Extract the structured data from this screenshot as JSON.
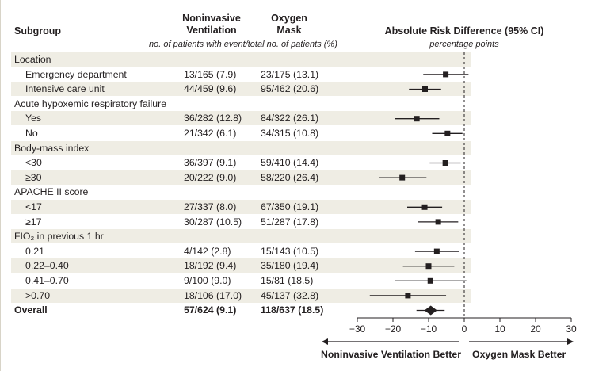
{
  "headers": {
    "subgroup": "Subgroup",
    "niv_line1": "Noninvasive",
    "niv_line2": "Ventilation",
    "mask_line1": "Oxygen",
    "mask_line2": "Mask",
    "counts_note": "no. of patients with event/total no. of patients (%)",
    "ard": "Absolute Risk Difference (95% CI)",
    "units": "percentage points"
  },
  "rows": [
    {
      "label": "Location",
      "kind": "header"
    },
    {
      "label": "Emergency department",
      "kind": "item",
      "niv": "13/165 (7.9)",
      "mask": "23/175 (13.1)"
    },
    {
      "label": "Intensive care unit",
      "kind": "item",
      "niv": "44/459 (9.6)",
      "mask": "95/462 (20.6)"
    },
    {
      "label": "Acute hypoxemic respiratory failure",
      "kind": "header"
    },
    {
      "label": "Yes",
      "kind": "item",
      "niv": "36/282 (12.8)",
      "mask": "84/322 (26.1)"
    },
    {
      "label": "No",
      "kind": "item",
      "niv": "21/342 (6.1)",
      "mask": "34/315 (10.8)"
    },
    {
      "label": "Body-mass index",
      "kind": "header"
    },
    {
      "label": "<30",
      "kind": "item",
      "niv": "36/397 (9.1)",
      "mask": "59/410 (14.4)"
    },
    {
      "label": "≥30",
      "kind": "item",
      "niv": "20/222 (9.0)",
      "mask": "58/220 (26.4)"
    },
    {
      "label": "APACHE II score",
      "kind": "header"
    },
    {
      "label": "<17",
      "kind": "item",
      "niv": "27/337 (8.0)",
      "mask": "67/350 (19.1)"
    },
    {
      "label": "≥17",
      "kind": "item",
      "niv": "30/287 (10.5)",
      "mask": "51/287 (17.8)"
    },
    {
      "label": "FIO₂ in previous 1 hr",
      "kind": "header"
    },
    {
      "label": "0.21",
      "kind": "item",
      "niv": "4/142 (2.8)",
      "mask": "15/143 (10.5)"
    },
    {
      "label": "0.22–0.40",
      "kind": "item",
      "niv": "18/192 (9.4)",
      "mask": "35/180 (19.4)"
    },
    {
      "label": "0.41–0.70",
      "kind": "item",
      "niv": "9/100 (9.0)",
      "mask": "15/81 (18.5)"
    },
    {
      "label": ">0.70",
      "kind": "item",
      "niv": "18/106 (17.0)",
      "mask": "45/137 (32.8)"
    },
    {
      "label": "Overall",
      "kind": "overall",
      "niv": "57/624 (9.1)",
      "mask": "118/637 (18.5)"
    }
  ],
  "chart_data": {
    "type": "forest",
    "xlim": [
      -30,
      30
    ],
    "xticks": [
      -30,
      -20,
      -10,
      0,
      10,
      20,
      30
    ],
    "tick_labels": [
      "−30",
      "−20",
      "−10",
      "0",
      "10",
      "20",
      "30"
    ],
    "reference_line": 0,
    "left_label": "Noninvasive Ventilation Better",
    "right_label": "Oxygen Mask Better",
    "estimates": [
      {
        "row": 1,
        "est": -5.2,
        "lo": -11.5,
        "hi": 1.2
      },
      {
        "row": 2,
        "est": -11.0,
        "lo": -15.5,
        "hi": -6.5
      },
      {
        "row": 4,
        "est": -13.3,
        "lo": -19.5,
        "hi": -7.0
      },
      {
        "row": 5,
        "est": -4.7,
        "lo": -9.0,
        "hi": -0.5
      },
      {
        "row": 7,
        "est": -5.3,
        "lo": -9.7,
        "hi": -1.0
      },
      {
        "row": 8,
        "est": -17.4,
        "lo": -24.0,
        "hi": -10.6
      },
      {
        "row": 10,
        "est": -11.1,
        "lo": -16.0,
        "hi": -6.2
      },
      {
        "row": 11,
        "est": -7.3,
        "lo": -12.9,
        "hi": -1.7
      },
      {
        "row": 13,
        "est": -7.7,
        "lo": -13.8,
        "hi": -1.5
      },
      {
        "row": 14,
        "est": -10.0,
        "lo": -17.2,
        "hi": -2.8
      },
      {
        "row": 15,
        "est": -9.5,
        "lo": -19.5,
        "hi": 0.6
      },
      {
        "row": 16,
        "est": -15.8,
        "lo": -26.5,
        "hi": -5.1
      },
      {
        "row": 17,
        "est": -9.4,
        "lo": -13.4,
        "hi": -5.5,
        "overall": true
      }
    ]
  }
}
